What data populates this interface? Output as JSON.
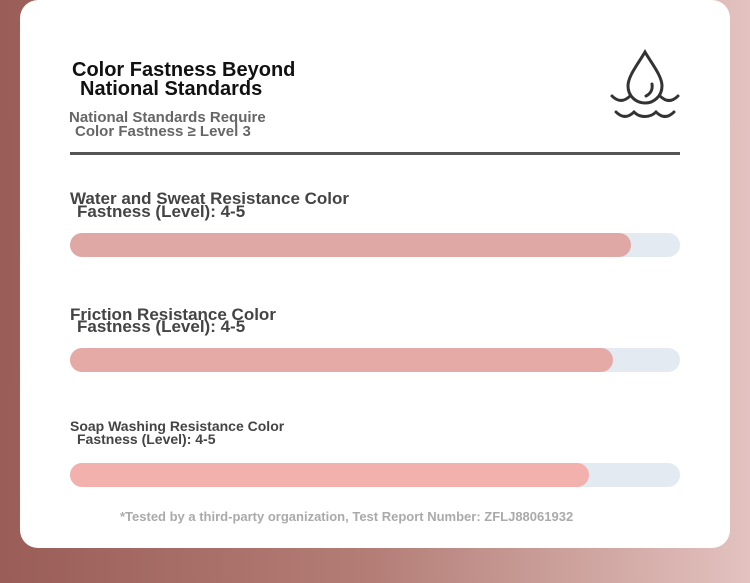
{
  "header": {
    "title": [
      "Color Fastness Beyond",
      "National Standards"
    ],
    "subtitle": [
      "National Standards Require",
      "Color Fastness ≥ Level 3"
    ]
  },
  "xlim": [
    0,
    100
  ],
  "bars": [
    {
      "label": [
        "Water and Sweat Resistance Color",
        "Fastness (Level): 4-5"
      ],
      "value": 92,
      "color": "#e0a8a5"
    },
    {
      "label": [
        "Friction Resistance Color",
        "Fastness (Level): 4-5"
      ],
      "value": 89,
      "color": "#e6aaa6"
    },
    {
      "label": [
        "Soap Washing Resistance Color",
        "Fastness (Level): 4-5"
      ],
      "value": 85,
      "color": "#f2b1ac"
    }
  ],
  "footnote": "*Tested by a third-party organization, Test Report Number: ZFLJ88061932"
}
